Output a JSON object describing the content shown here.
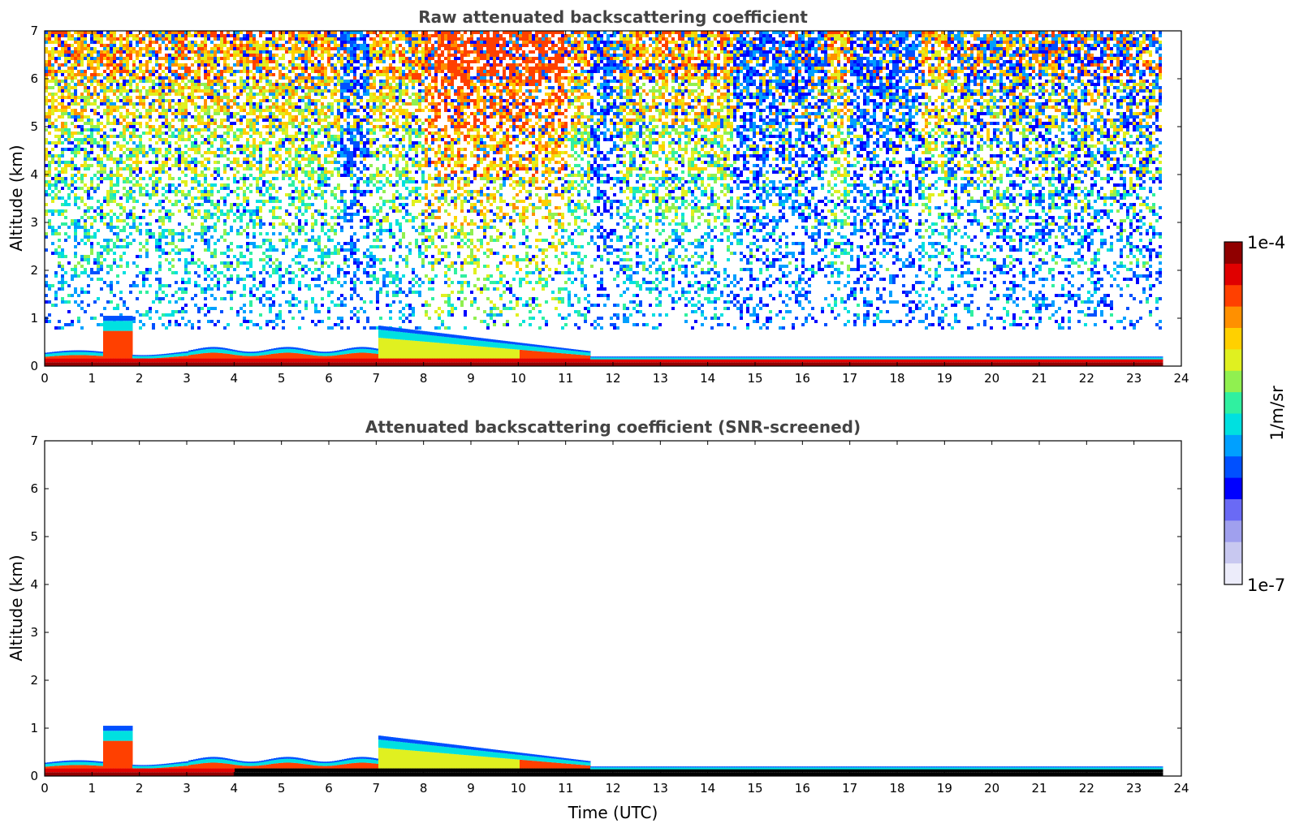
{
  "chart_data": [
    {
      "type": "heatmap",
      "title": "Raw attenuated backscattering coefficient",
      "xlabel": "",
      "ylabel": "Altitude (km)",
      "xlim": [
        0,
        24
      ],
      "ylim": [
        0,
        7
      ],
      "xticks": [
        "0",
        "1",
        "2",
        "3",
        "4",
        "5",
        "6",
        "7",
        "8",
        "9",
        "10",
        "11",
        "12",
        "13",
        "14",
        "15",
        "16",
        "17",
        "18",
        "19",
        "20",
        "21",
        "22",
        "23",
        "24"
      ],
      "yticks": [
        "0",
        "1",
        "2",
        "3",
        "4",
        "5",
        "6",
        "7"
      ],
      "data_end_time": 23.6,
      "features": [
        {
          "name": "boundary-layer aerosol",
          "t_start": 0,
          "t_end": 23.6,
          "top_km": 0.3
        },
        {
          "name": "elevated aerosol layer",
          "t_start": 7.0,
          "t_end": 11.5,
          "top_km": 0.85
        },
        {
          "name": "low cloud",
          "t_start": 1.2,
          "t_end": 1.8,
          "top_km": 1.1
        },
        {
          "name": "noise region",
          "t_start": 0,
          "t_end": 23.6,
          "bottom_km": 0.8,
          "top_km": 7
        }
      ]
    },
    {
      "type": "heatmap",
      "title": "Attenuated backscattering coefficient (SNR-screened)",
      "xlabel": "Time (UTC)",
      "ylabel": "Altitude (km)",
      "xlim": [
        0,
        24
      ],
      "ylim": [
        0,
        7
      ],
      "xticks": [
        "0",
        "1",
        "2",
        "3",
        "4",
        "5",
        "6",
        "7",
        "8",
        "9",
        "10",
        "11",
        "12",
        "13",
        "14",
        "15",
        "16",
        "17",
        "18",
        "19",
        "20",
        "21",
        "22",
        "23",
        "24"
      ],
      "yticks": [
        "0",
        "1",
        "2",
        "3",
        "4",
        "5",
        "6",
        "7"
      ],
      "data_end_time": 23.6,
      "features": [
        {
          "name": "boundary-layer aerosol",
          "t_start": 0,
          "t_end": 23.6,
          "top_km": 0.3
        },
        {
          "name": "elevated aerosol layer",
          "t_start": 7.0,
          "t_end": 11.5,
          "top_km": 0.85
        },
        {
          "name": "low cloud",
          "t_start": 1.2,
          "t_end": 1.8,
          "top_km": 1.1
        }
      ]
    }
  ],
  "colorbar": {
    "label": "1/m/sr",
    "min_label": "1e-7",
    "max_label": "1e-4",
    "colormap": [
      "#ececfa",
      "#c8c8f0",
      "#a0a0ee",
      "#6a6af5",
      "#0000ff",
      "#0050ff",
      "#00a0ff",
      "#00e0e0",
      "#30f0a0",
      "#90f050",
      "#e0f020",
      "#ffd000",
      "#ff9000",
      "#ff4000",
      "#e00000",
      "#900000"
    ]
  }
}
